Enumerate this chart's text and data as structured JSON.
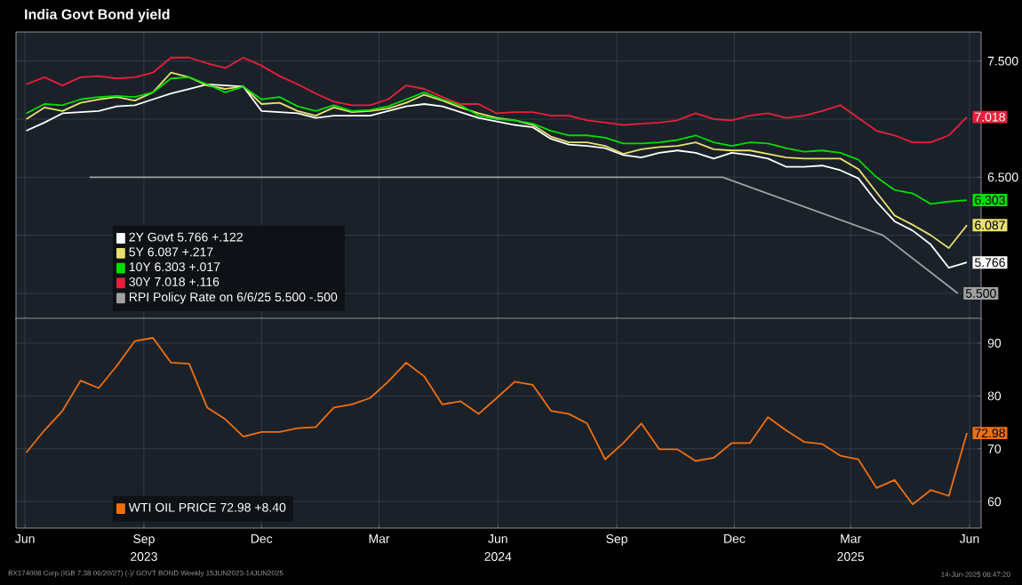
{
  "chart_data": [
    {
      "type": "line",
      "title": "India Govt Bond yield",
      "tick_labels": "y",
      "grid": true,
      "legend": "bottom left",
      "marker": "none",
      "line_style": "solid",
      "xlim": [
        "2023-06-08",
        "2025-06-24"
      ],
      "xticks": [
        {
          "value": "2023-06-15",
          "label": null
        },
        {
          "value": "2023-09-15",
          "label": null
        },
        {
          "value": "2023-12-15",
          "label": null
        },
        {
          "value": "2024-03-15",
          "label": null
        },
        {
          "value": "2024-06-15",
          "label": null
        },
        {
          "value": "2024-09-15",
          "label": null
        },
        {
          "value": "2024-12-15",
          "label": null
        },
        {
          "value": "2025-03-15",
          "label": null
        },
        {
          "value": "2025-06-15",
          "label": null
        }
      ],
      "ylim": [
        5.27,
        7.75
      ],
      "yticks": [
        {
          "value": 5.5,
          "label": null
        },
        {
          "value": 6.0,
          "label": null
        },
        {
          "value": 6.5,
          "label": "6.500"
        },
        {
          "value": 7.0,
          "label": null
        },
        {
          "value": 7.5,
          "label": "7.500"
        }
      ],
      "x": [
        "2023-06-16",
        "2023-06-30",
        "2023-07-14",
        "2023-07-28",
        "2023-08-11",
        "2023-08-25",
        "2023-09-08",
        "2023-09-22",
        "2023-10-06",
        "2023-10-20",
        "2023-11-03",
        "2023-11-17",
        "2023-12-01",
        "2023-12-15",
        "2023-12-29",
        "2024-01-12",
        "2024-01-26",
        "2024-02-09",
        "2024-02-23",
        "2024-03-08",
        "2024-03-22",
        "2024-04-05",
        "2024-04-19",
        "2024-05-03",
        "2024-05-17",
        "2024-05-31",
        "2024-06-14",
        "2024-06-28",
        "2024-07-12",
        "2024-07-26",
        "2024-08-09",
        "2024-08-23",
        "2024-09-06",
        "2024-09-20",
        "2024-10-04",
        "2024-10-18",
        "2024-11-01",
        "2024-11-15",
        "2024-11-29",
        "2024-12-13",
        "2024-12-27",
        "2025-01-10",
        "2025-01-24",
        "2025-02-07",
        "2025-02-21",
        "2025-03-07",
        "2025-03-21",
        "2025-04-04",
        "2025-04-18",
        "2025-05-02",
        "2025-05-16",
        "2025-05-30",
        "2025-06-13"
      ],
      "series": [
        {
          "name": "2Y Govt 5.766 +.122",
          "color": "#ffffff",
          "values": [
            6.9,
            6.97,
            7.05,
            7.06,
            7.07,
            7.11,
            7.12,
            7.17,
            7.22,
            7.26,
            7.3,
            7.29,
            7.28,
            7.07,
            7.06,
            7.05,
            7.01,
            7.03,
            7.03,
            7.03,
            7.07,
            7.11,
            7.13,
            7.11,
            7.06,
            7.01,
            6.98,
            6.95,
            6.93,
            6.83,
            6.78,
            6.77,
            6.75,
            6.69,
            6.67,
            6.71,
            6.73,
            6.71,
            6.66,
            6.71,
            6.69,
            6.66,
            6.59,
            6.59,
            6.6,
            6.56,
            6.49,
            6.29,
            6.12,
            6.04,
            5.92,
            5.72,
            5.766
          ],
          "value_labels": [
            null,
            null,
            null,
            null,
            null,
            null,
            null,
            null,
            null,
            null,
            null,
            null,
            null,
            null,
            null,
            null,
            null,
            null,
            null,
            null,
            null,
            null,
            null,
            null,
            null,
            null,
            null,
            null,
            null,
            null,
            null,
            null,
            null,
            null,
            null,
            null,
            null,
            null,
            null,
            null,
            null,
            null,
            null,
            null,
            null,
            null,
            null,
            null,
            null,
            null,
            null,
            null,
            "5.766"
          ]
        },
        {
          "name": "5Y 6.087 +.217",
          "color": "#e8e070",
          "values": [
            7.0,
            7.1,
            7.07,
            7.14,
            7.17,
            7.19,
            7.16,
            7.23,
            7.4,
            7.36,
            7.29,
            7.26,
            7.28,
            7.13,
            7.14,
            7.07,
            7.03,
            7.1,
            7.06,
            7.07,
            7.09,
            7.14,
            7.21,
            7.16,
            7.1,
            7.05,
            7.01,
            6.99,
            6.95,
            6.85,
            6.8,
            6.8,
            6.77,
            6.7,
            6.74,
            6.76,
            6.77,
            6.8,
            6.74,
            6.73,
            6.73,
            6.7,
            6.67,
            6.66,
            6.66,
            6.66,
            6.57,
            6.37,
            6.17,
            6.09,
            6.0,
            5.89,
            6.087
          ],
          "value_labels": [
            null,
            null,
            null,
            null,
            null,
            null,
            null,
            null,
            null,
            null,
            null,
            null,
            null,
            null,
            null,
            null,
            null,
            null,
            null,
            null,
            null,
            null,
            null,
            null,
            null,
            null,
            null,
            null,
            null,
            null,
            null,
            null,
            null,
            null,
            null,
            null,
            null,
            null,
            null,
            null,
            null,
            null,
            null,
            null,
            null,
            null,
            null,
            null,
            null,
            null,
            null,
            null,
            "6.087"
          ]
        },
        {
          "name": "10Y 6.303 +.017",
          "color": "#00dd00",
          "values": [
            7.05,
            7.13,
            7.12,
            7.17,
            7.19,
            7.2,
            7.19,
            7.23,
            7.35,
            7.36,
            7.3,
            7.23,
            7.28,
            7.17,
            7.19,
            7.11,
            7.07,
            7.12,
            7.07,
            7.08,
            7.11,
            7.17,
            7.23,
            7.17,
            7.12,
            7.03,
            7.0,
            6.99,
            6.96,
            6.9,
            6.86,
            6.86,
            6.84,
            6.79,
            6.79,
            6.8,
            6.82,
            6.86,
            6.8,
            6.77,
            6.8,
            6.79,
            6.75,
            6.72,
            6.73,
            6.71,
            6.65,
            6.5,
            6.39,
            6.36,
            6.27,
            6.29,
            6.303
          ],
          "value_labels": [
            null,
            null,
            null,
            null,
            null,
            null,
            null,
            null,
            null,
            null,
            null,
            null,
            null,
            null,
            null,
            null,
            null,
            null,
            null,
            null,
            null,
            null,
            null,
            null,
            null,
            null,
            null,
            null,
            null,
            null,
            null,
            null,
            null,
            null,
            null,
            null,
            null,
            null,
            null,
            null,
            null,
            null,
            null,
            null,
            null,
            null,
            null,
            null,
            null,
            null,
            null,
            null,
            "6.303"
          ]
        },
        {
          "name": "30Y 7.018 +.116",
          "color": "#e8203c",
          "values": [
            7.3,
            7.36,
            7.29,
            7.36,
            7.37,
            7.35,
            7.36,
            7.4,
            7.53,
            7.53,
            7.48,
            7.44,
            7.53,
            7.46,
            7.37,
            7.3,
            7.22,
            7.15,
            7.12,
            7.12,
            7.17,
            7.29,
            7.26,
            7.19,
            7.13,
            7.13,
            7.05,
            7.06,
            7.06,
            7.03,
            7.03,
            6.99,
            6.97,
            6.95,
            6.96,
            6.97,
            6.99,
            7.05,
            7.0,
            6.99,
            7.03,
            7.05,
            7.01,
            7.03,
            7.07,
            7.12,
            7.01,
            6.9,
            6.86,
            6.8,
            6.8,
            6.86,
            7.018
          ],
          "value_labels": [
            null,
            null,
            null,
            null,
            null,
            null,
            null,
            null,
            null,
            null,
            null,
            null,
            null,
            null,
            null,
            null,
            null,
            null,
            null,
            null,
            null,
            null,
            null,
            null,
            null,
            null,
            null,
            null,
            null,
            null,
            null,
            null,
            null,
            null,
            null,
            null,
            null,
            null,
            null,
            null,
            null,
            null,
            null,
            null,
            null,
            null,
            null,
            null,
            null,
            null,
            null,
            null,
            "7.018"
          ]
        },
        {
          "name": "RPI Policy Rate on 6/6/25 5.500 -.500",
          "color": "#a0a0a0",
          "x": [
            "2023-08-04",
            "2024-12-06",
            "2025-04-09",
            "2025-06-06"
          ],
          "values": [
            6.5,
            6.5,
            6.0,
            5.5
          ],
          "value_labels": [
            null,
            null,
            null,
            "5.500"
          ]
        }
      ]
    },
    {
      "type": "line",
      "grid": true,
      "legend": "bottom left",
      "marker": "none",
      "line_style": "solid",
      "xlim": [
        "2023-06-08",
        "2025-06-24"
      ],
      "xticks": [
        {
          "value": "2023-06-15",
          "label": "Jun"
        },
        {
          "value": "2023-09-15",
          "label": "Sep"
        },
        {
          "value": "2023-12-15",
          "label": "Dec"
        },
        {
          "value": "2024-03-15",
          "label": "Mar"
        },
        {
          "value": "2024-06-15",
          "label": "Jun"
        },
        {
          "value": "2024-09-15",
          "label": "Sep"
        },
        {
          "value": "2024-12-15",
          "label": "Dec"
        },
        {
          "value": "2025-03-15",
          "label": "Mar"
        },
        {
          "value": "2025-06-15",
          "label": "Jun"
        }
      ],
      "ylim": [
        55,
        94.7
      ],
      "yticks": [
        60,
        70,
        80,
        90
      ],
      "x": [
        "2023-06-16",
        "2023-06-30",
        "2023-07-14",
        "2023-07-28",
        "2023-08-11",
        "2023-08-25",
        "2023-09-08",
        "2023-09-22",
        "2023-10-06",
        "2023-10-20",
        "2023-11-03",
        "2023-11-17",
        "2023-12-01",
        "2023-12-15",
        "2023-12-29",
        "2024-01-12",
        "2024-01-26",
        "2024-02-09",
        "2024-02-23",
        "2024-03-08",
        "2024-03-22",
        "2024-04-05",
        "2024-04-19",
        "2024-05-03",
        "2024-05-17",
        "2024-05-31",
        "2024-06-14",
        "2024-06-28",
        "2024-07-12",
        "2024-07-26",
        "2024-08-09",
        "2024-08-23",
        "2024-09-06",
        "2024-09-20",
        "2024-10-04",
        "2024-10-18",
        "2024-11-01",
        "2024-11-15",
        "2024-11-29",
        "2024-12-13",
        "2024-12-27",
        "2025-01-10",
        "2025-01-24",
        "2025-02-07",
        "2025-02-21",
        "2025-03-07",
        "2025-03-21",
        "2025-04-04",
        "2025-04-18",
        "2025-05-02",
        "2025-05-16",
        "2025-05-30",
        "2025-06-13"
      ],
      "series": [
        {
          "name": "WTI OIL PRICE 72.98 +8.40",
          "color": "#f07010",
          "values": [
            69.3,
            73.5,
            77.2,
            82.9,
            81.5,
            85.7,
            90.4,
            91.0,
            86.3,
            86.1,
            77.8,
            75.6,
            72.3,
            73.2,
            73.2,
            73.9,
            74.1,
            77.8,
            78.4,
            79.6,
            82.7,
            86.3,
            83.7,
            78.4,
            79.0,
            76.6,
            79.6,
            82.7,
            82.1,
            77.2,
            76.6,
            74.8,
            68.0,
            71.1,
            74.8,
            69.9,
            69.9,
            67.7,
            68.3,
            71.1,
            71.1,
            76.0,
            73.5,
            71.3,
            70.9,
            68.7,
            68.0,
            62.6,
            64.1,
            59.5,
            62.2,
            61.1,
            72.98
          ],
          "value_labels": [
            null,
            null,
            null,
            null,
            null,
            null,
            null,
            null,
            null,
            null,
            null,
            null,
            null,
            null,
            null,
            null,
            null,
            null,
            null,
            null,
            null,
            null,
            null,
            null,
            null,
            null,
            null,
            null,
            null,
            null,
            null,
            null,
            null,
            null,
            null,
            null,
            null,
            null,
            null,
            null,
            null,
            null,
            null,
            null,
            null,
            null,
            null,
            null,
            null,
            null,
            null,
            null,
            "72.98"
          ]
        }
      ],
      "x2lim": [
        "2023-06-08",
        "2025-06-24"
      ],
      "x2ticks": [
        {
          "value": "2023-09-15",
          "label": "2023"
        },
        {
          "value": "2024-06-15",
          "label": "2024"
        },
        {
          "value": "2025-03-15",
          "label": "2025"
        }
      ],
      "annotations": [
        "BX174008 Corp (IGB 7.38 06/20/27) (-)/ GOVT BOND Weekly 15JUN2023-14JUN2025",
        "14-Jun-2025 06:47:20"
      ]
    }
  ]
}
